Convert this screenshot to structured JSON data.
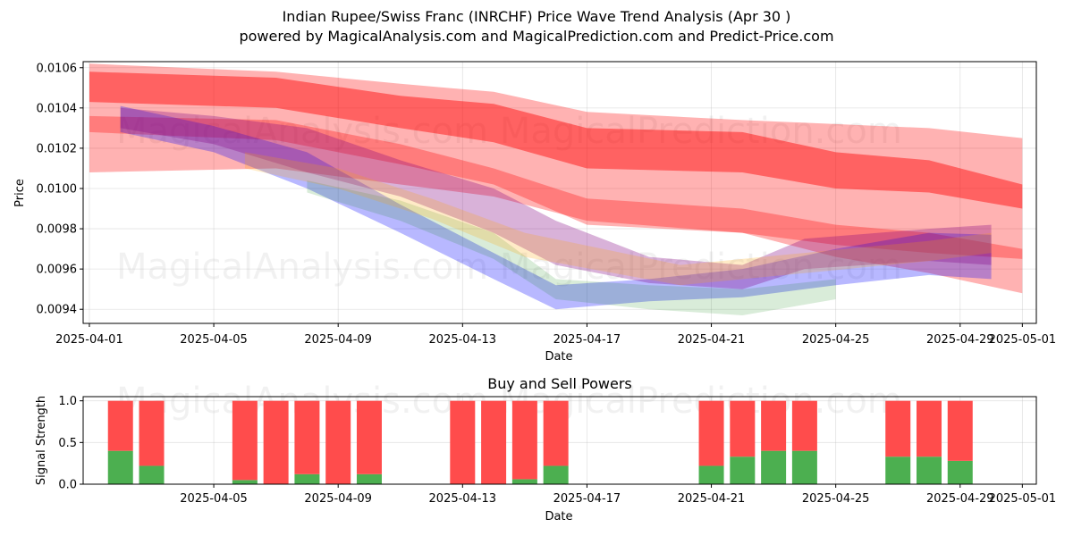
{
  "title_line1": "Indian Rupee/Swiss Franc (INRCHF) Price Wave Trend Analysis (Apr 30 )",
  "title_line2": "powered by MagicalAnalysis.com and MagicalPrediction.com and Predict-Price.com",
  "watermark": "MagicalAnalysis.com    MagicalPrediction.com",
  "watermark_lower": "MagicalAnalysis.com    MagicalPrediction.com",
  "watermark_bottom": "MagicalAnalysis.com    MagicalPrediction.com",
  "colors": {
    "red_band": "#ff0000",
    "blue_band": "#0000ff",
    "green_band": "#008000",
    "purple_band": "#800080",
    "orange_band": "#ffa500",
    "buy": "#4caf50",
    "sell": "#ff4c4c",
    "grid": "#b0b0b0"
  },
  "chart_data": [
    {
      "type": "area",
      "xlabel": "Date",
      "ylabel": "Price",
      "x_ticks": [
        "2025-04-01",
        "2025-04-05",
        "2025-04-09",
        "2025-04-13",
        "2025-04-17",
        "2025-04-21",
        "2025-04-25",
        "2025-04-29",
        "2025-05-01"
      ],
      "y_ticks": [
        "0.0094",
        "0.0096",
        "0.0098",
        "0.0100",
        "0.0102",
        "0.0104",
        "0.0106"
      ],
      "ylim": [
        0.00933,
        0.01063
      ],
      "xlim": [
        "2025-03-31",
        "2025-05-02"
      ],
      "grid": true,
      "bands": [
        {
          "color": "red",
          "x": [
            "2025-04-01",
            "2025-04-07",
            "2025-04-11",
            "2025-04-14",
            "2025-04-17",
            "2025-04-22",
            "2025-04-25",
            "2025-04-28",
            "2025-05-01"
          ],
          "upper": [
            0.01062,
            0.01058,
            0.01052,
            0.01048,
            0.01038,
            0.01034,
            0.01032,
            0.0103,
            0.01025
          ],
          "lower": [
            0.01008,
            0.0101,
            0.01002,
            0.00996,
            0.00984,
            0.00978,
            0.00972,
            0.00968,
            0.00965
          ]
        },
        {
          "color": "red",
          "x": [
            "2025-04-01",
            "2025-04-07",
            "2025-04-11",
            "2025-04-14",
            "2025-04-17",
            "2025-04-22",
            "2025-04-25",
            "2025-04-28",
            "2025-05-01"
          ],
          "upper": [
            0.01058,
            0.01055,
            0.01046,
            0.01042,
            0.0103,
            0.01028,
            0.01018,
            0.01014,
            0.01002
          ],
          "lower": [
            0.01043,
            0.0104,
            0.0103,
            0.01023,
            0.0101,
            0.01008,
            0.01,
            0.00998,
            0.0099
          ]
        },
        {
          "color": "red",
          "x": [
            "2025-04-01",
            "2025-04-07",
            "2025-04-11",
            "2025-04-14",
            "2025-04-17",
            "2025-04-22",
            "2025-04-25",
            "2025-04-28",
            "2025-05-01"
          ],
          "upper": [
            0.01036,
            0.01034,
            0.01022,
            0.0101,
            0.00995,
            0.0099,
            0.00982,
            0.00978,
            0.0097
          ],
          "lower": [
            0.01028,
            0.01024,
            0.01012,
            0.01002,
            0.00982,
            0.00978,
            0.00966,
            0.00958,
            0.00948
          ]
        },
        {
          "color": "blue",
          "x": [
            "2025-04-02",
            "2025-04-05",
            "2025-04-08",
            "2025-04-11",
            "2025-04-14",
            "2025-04-16",
            "2025-04-19",
            "2025-04-22",
            "2025-04-25",
            "2025-04-28",
            "2025-04-30"
          ],
          "upper": [
            0.01041,
            0.01031,
            0.01018,
            0.00992,
            0.00968,
            0.00952,
            0.00955,
            0.0096,
            0.0097,
            0.00978,
            0.00977
          ],
          "lower": [
            0.01028,
            0.01018,
            0.01,
            0.00978,
            0.00955,
            0.0094,
            0.00944,
            0.00946,
            0.00952,
            0.00957,
            0.00955
          ]
        },
        {
          "color": "green",
          "x": [
            "2025-04-08",
            "2025-04-11",
            "2025-04-14",
            "2025-04-16",
            "2025-04-19",
            "2025-04-22",
            "2025-04-25"
          ],
          "upper": [
            0.01004,
            0.00994,
            0.00978,
            0.00955,
            0.00952,
            0.0095,
            0.00955
          ],
          "lower": [
            0.00998,
            0.00984,
            0.00965,
            0.00945,
            0.0094,
            0.00937,
            0.00945
          ]
        },
        {
          "color": "purple",
          "x": [
            "2025-04-02",
            "2025-04-05",
            "2025-04-08",
            "2025-04-11",
            "2025-04-14",
            "2025-04-16",
            "2025-04-19",
            "2025-04-22",
            "2025-04-24",
            "2025-04-28",
            "2025-04-30"
          ],
          "upper": [
            0.0104,
            0.01036,
            0.0103,
            0.01014,
            0.01,
            0.00984,
            0.00966,
            0.00962,
            0.00975,
            0.0098,
            0.00982
          ],
          "lower": [
            0.0103,
            0.01022,
            0.01008,
            0.00996,
            0.00978,
            0.00962,
            0.00953,
            0.0095,
            0.0096,
            0.00964,
            0.00962
          ]
        },
        {
          "color": "orange",
          "x": [
            "2025-04-06",
            "2025-04-09",
            "2025-04-12",
            "2025-04-15",
            "2025-04-20",
            "2025-04-24",
            "2025-04-28",
            "2025-04-30"
          ],
          "upper": [
            0.01018,
            0.0101,
            0.00995,
            0.00978,
            0.00962,
            0.00968,
            0.00974,
            0.00978
          ],
          "lower": [
            0.0101,
            0.01,
            0.00985,
            0.00966,
            0.00952,
            0.00958,
            0.00964,
            0.00968
          ]
        }
      ]
    },
    {
      "type": "bar",
      "title": "Buy and Sell Powers",
      "xlabel": "Date",
      "ylabel": "Signal Strength",
      "x_ticks": [
        "2025-04-05",
        "2025-04-09",
        "2025-04-13",
        "2025-04-17",
        "2025-04-21",
        "2025-04-25",
        "2025-04-29",
        "2025-05-01"
      ],
      "y_ticks": [
        "0.0",
        "0.5",
        "1.0"
      ],
      "ylim": [
        0,
        1.05
      ],
      "grid": true,
      "categories": [
        "2025-04-02",
        "2025-04-03",
        "2025-04-06",
        "2025-04-07",
        "2025-04-08",
        "2025-04-09",
        "2025-04-10",
        "2025-04-13",
        "2025-04-14",
        "2025-04-15",
        "2025-04-16",
        "2025-04-21",
        "2025-04-22",
        "2025-04-23",
        "2025-04-24",
        "2025-04-27",
        "2025-04-28",
        "2025-04-29"
      ],
      "series": [
        {
          "name": "buy",
          "values": [
            0.4,
            0.22,
            0.05,
            0.0,
            0.12,
            0.0,
            0.12,
            0.0,
            0.0,
            0.06,
            0.22,
            0.22,
            0.33,
            0.4,
            0.4,
            0.33,
            0.33,
            0.28
          ]
        },
        {
          "name": "sell",
          "values": [
            0.6,
            0.78,
            0.95,
            1.0,
            0.88,
            1.0,
            0.88,
            1.0,
            1.0,
            0.94,
            0.78,
            0.78,
            0.67,
            0.6,
            0.6,
            0.67,
            0.67,
            0.72
          ]
        }
      ]
    }
  ]
}
